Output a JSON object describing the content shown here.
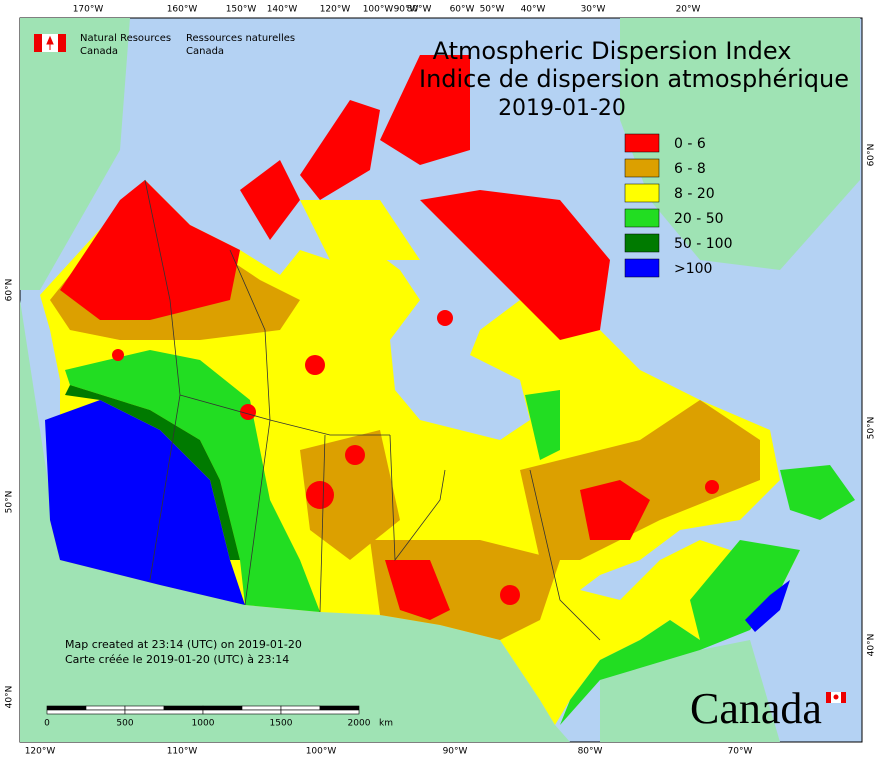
{
  "header": {
    "org_en": [
      "Natural Resources",
      "Canada"
    ],
    "org_fr": [
      "Ressources naturelles",
      "Canada"
    ]
  },
  "title": [
    "Atmospheric Dispersion Index",
    "Indice de dispersion atmosphérique",
    "2019-01-20"
  ],
  "legend": [
    {
      "label": "0 - 6",
      "color": "#ff0000"
    },
    {
      "label": "6 - 8",
      "color": "#dca000"
    },
    {
      "label": "8 - 20",
      "color": "#ffff00"
    },
    {
      "label": "20 - 50",
      "color": "#22dd22"
    },
    {
      "label": "50 - 100",
      "color": "#007a00"
    },
    {
      "label": ">100",
      "color": "#0000ff"
    }
  ],
  "graticule": {
    "top": [
      "170°W",
      "160°W",
      "150°W",
      "140°W",
      "120°W",
      "100°W",
      "90°W",
      "80°W",
      "60°W",
      "50°W",
      "40°W",
      "30°W",
      "20°W"
    ],
    "bottom": [
      "120°W",
      "110°W",
      "100°W",
      "90°W",
      "80°W",
      "70°W"
    ],
    "left": [
      "60°N",
      "50°N",
      "40°N"
    ],
    "right": [
      "60°N",
      "50°N",
      "40°N"
    ]
  },
  "footer": [
    "Map created at 23:14 (UTC) on 2019-01-20",
    "Carte créée le 2019-01-20 (UTC) à 23:14"
  ],
  "scale_bar": {
    "labels": [
      0,
      500,
      1000,
      1500,
      2000
    ],
    "unit": "km"
  },
  "wordmark": "Canada"
}
